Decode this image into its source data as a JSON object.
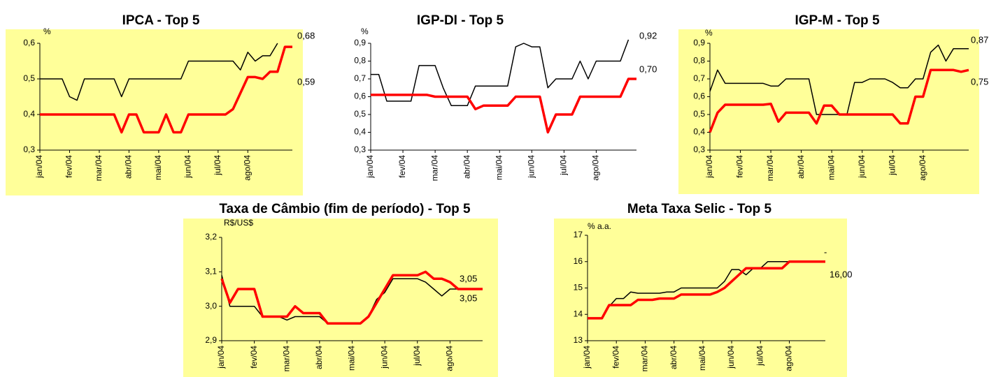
{
  "chart_data": [
    {
      "type": "line",
      "title": "IPCA - Top 5",
      "y_label": "%",
      "background": "#ffff99",
      "categories": [
        "jan/04",
        null,
        null,
        null,
        "fev/04",
        null,
        null,
        null,
        "mar/04",
        null,
        null,
        null,
        "abr/04",
        null,
        null,
        null,
        "mai/04",
        null,
        null,
        null,
        "jun/04",
        null,
        null,
        null,
        "jul/04",
        null,
        null,
        null,
        "ago/04",
        null,
        null,
        null,
        null,
        null,
        null
      ],
      "series": [
        {
          "color": "#000000",
          "values": [
            0.5,
            0.5,
            0.5,
            0.5,
            0.45,
            0.44,
            0.5,
            0.5,
            0.5,
            0.5,
            0.5,
            0.45,
            0.5,
            0.5,
            0.5,
            0.5,
            0.5,
            0.5,
            0.5,
            0.5,
            0.55,
            0.55,
            0.55,
            0.55,
            0.55,
            0.55,
            0.55,
            0.525,
            0.575,
            0.55,
            0.565,
            0.565,
            0.6,
            null,
            null
          ]
        },
        {
          "color": "#ff0000",
          "values": [
            0.4,
            0.4,
            0.4,
            0.4,
            0.4,
            0.4,
            0.4,
            0.4,
            0.4,
            0.4,
            0.4,
            0.35,
            0.4,
            0.4,
            0.35,
            0.35,
            0.35,
            0.4,
            0.35,
            0.35,
            0.4,
            0.4,
            0.4,
            0.4,
            0.4,
            0.4,
            0.415,
            0.46,
            0.505,
            0.505,
            0.5,
            0.52,
            0.52,
            0.59,
            0.59
          ]
        }
      ],
      "ylim": [
        0.3,
        0.6
      ],
      "yticks": [
        {
          "value": 0.3,
          "label": "0,3"
        },
        {
          "value": 0.4,
          "label": "0,4"
        },
        {
          "value": 0.5,
          "label": "0,5"
        },
        {
          "value": 0.6,
          "label": "0,6"
        }
      ],
      "annotations": [
        "0,68",
        "0,59"
      ]
    },
    {
      "type": "line",
      "title": "IGP-DI - Top 5",
      "y_label": "%",
      "categories": [
        "jan/04",
        null,
        null,
        null,
        "fev/04",
        null,
        null,
        null,
        "mar/04",
        null,
        null,
        null,
        "abr/04",
        null,
        null,
        null,
        "mai/04",
        null,
        null,
        null,
        "jun/04",
        null,
        null,
        null,
        "jul/04",
        null,
        null,
        null,
        "ago/04",
        null,
        null,
        null,
        null,
        null
      ],
      "series": [
        {
          "color": "#000000",
          "values": [
            0.725,
            0.725,
            0.575,
            0.575,
            0.575,
            0.575,
            0.775,
            0.775,
            0.775,
            0.65,
            0.55,
            0.55,
            0.55,
            0.66,
            0.66,
            0.66,
            0.66,
            0.66,
            0.88,
            0.9,
            0.88,
            0.88,
            0.65,
            0.7,
            0.7,
            0.7,
            0.8,
            0.7,
            0.8,
            0.8,
            0.8,
            0.8,
            0.92,
            null
          ]
        },
        {
          "color": "#ff0000",
          "values": [
            0.61,
            0.61,
            0.61,
            0.61,
            0.61,
            0.61,
            0.61,
            0.61,
            0.6,
            0.6,
            0.6,
            0.6,
            0.6,
            0.53,
            0.55,
            0.55,
            0.55,
            0.55,
            0.6,
            0.6,
            0.6,
            0.6,
            0.4,
            0.5,
            0.5,
            0.5,
            0.6,
            0.6,
            0.6,
            0.6,
            0.6,
            0.6,
            0.7,
            0.7
          ]
        }
      ],
      "ylim": [
        0.3,
        0.9
      ],
      "yticks": [
        {
          "value": 0.3,
          "label": "0,3"
        },
        {
          "value": 0.4,
          "label": "0,4"
        },
        {
          "value": 0.5,
          "label": "0,5"
        },
        {
          "value": 0.6,
          "label": "0,6"
        },
        {
          "value": 0.7,
          "label": "0,7"
        },
        {
          "value": 0.8,
          "label": "0,8"
        },
        {
          "value": 0.9,
          "label": "0,9"
        }
      ],
      "annotations": [
        "0,92",
        "0,70"
      ]
    },
    {
      "type": "line",
      "title": "IGP-M - Top 5",
      "y_label": "%",
      "background": "#ffff99",
      "categories": [
        "jan/04",
        null,
        null,
        null,
        "fev/04",
        null,
        null,
        null,
        "mar/04",
        null,
        null,
        null,
        "abr/04",
        null,
        null,
        null,
        "mai/04",
        null,
        null,
        null,
        "jun/04",
        null,
        null,
        null,
        "jul/04",
        null,
        null,
        null,
        "ago/04",
        null,
        null,
        null,
        null,
        null,
        null
      ],
      "series": [
        {
          "color": "#000000",
          "values": [
            0.63,
            0.75,
            0.675,
            0.675,
            0.675,
            0.675,
            0.675,
            0.675,
            0.66,
            0.66,
            0.7,
            0.7,
            0.7,
            0.7,
            0.5,
            0.5,
            0.5,
            0.5,
            0.5,
            0.68,
            0.68,
            0.7,
            0.7,
            0.7,
            0.68,
            0.65,
            0.65,
            0.7,
            0.7,
            0.85,
            0.89,
            0.8,
            0.87,
            0.87,
            0.87
          ]
        },
        {
          "color": "#ff0000",
          "values": [
            0.4,
            0.51,
            0.555,
            0.555,
            0.555,
            0.555,
            0.555,
            0.555,
            0.56,
            0.46,
            0.51,
            0.51,
            0.51,
            0.51,
            0.45,
            0.55,
            0.55,
            0.5,
            0.5,
            0.5,
            0.5,
            0.5,
            0.5,
            0.5,
            0.5,
            0.45,
            0.45,
            0.6,
            0.6,
            0.75,
            0.75,
            0.75,
            0.75,
            0.74,
            0.75
          ]
        }
      ],
      "ylim": [
        0.3,
        0.9
      ],
      "yticks": [
        {
          "value": 0.3,
          "label": "0,3"
        },
        {
          "value": 0.4,
          "label": "0,4"
        },
        {
          "value": 0.5,
          "label": "0,5"
        },
        {
          "value": 0.6,
          "label": "0,6"
        },
        {
          "value": 0.7,
          "label": "0,7"
        },
        {
          "value": 0.8,
          "label": "0,8"
        },
        {
          "value": 0.9,
          "label": "0,9"
        }
      ],
      "annotations": [
        "0,87",
        "0,75"
      ]
    },
    {
      "type": "line",
      "title": "Taxa de Câmbio (fim de período) - Top 5",
      "y_label": "R$/US$",
      "background": "#ffff99",
      "categories": [
        "jan/04",
        null,
        null,
        null,
        "fev/04",
        null,
        null,
        null,
        "mar/04",
        null,
        null,
        null,
        "abr/04",
        null,
        null,
        null,
        "mai/04",
        null,
        null,
        null,
        "jun/04",
        null,
        null,
        null,
        "jul/04",
        null,
        null,
        null,
        "ago/04",
        null,
        null,
        null,
        null
      ],
      "series": [
        {
          "color": "#000000",
          "values": [
            3.09,
            3.0,
            3.0,
            3.0,
            3.0,
            2.97,
            2.97,
            2.97,
            2.96,
            2.97,
            2.97,
            2.97,
            2.97,
            2.95,
            2.95,
            2.95,
            2.95,
            2.95,
            2.97,
            3.02,
            3.04,
            3.08,
            3.08,
            3.08,
            3.08,
            3.07,
            3.05,
            3.03,
            3.05,
            3.05,
            3.05,
            3.05,
            3.05
          ]
        },
        {
          "color": "#ff0000",
          "values": [
            3.08,
            3.01,
            3.05,
            3.05,
            3.05,
            2.97,
            2.97,
            2.97,
            2.97,
            3.0,
            2.98,
            2.98,
            2.98,
            2.95,
            2.95,
            2.95,
            2.95,
            2.95,
            2.97,
            3.01,
            3.05,
            3.09,
            3.09,
            3.09,
            3.09,
            3.1,
            3.08,
            3.08,
            3.07,
            3.05,
            3.05,
            3.05,
            3.05
          ]
        }
      ],
      "ylim": [
        2.9,
        3.2
      ],
      "yticks": [
        {
          "value": 2.9,
          "label": "2,9"
        },
        {
          "value": 3.0,
          "label": "3,0"
        },
        {
          "value": 3.1,
          "label": "3,1"
        },
        {
          "value": 3.2,
          "label": "3,2"
        }
      ],
      "annotations": [
        "3,05",
        "3,05"
      ]
    },
    {
      "type": "line",
      "title": "Meta Taxa Selic - Top 5",
      "y_label": "% a.a.",
      "background": "#ffff99",
      "categories": [
        "jan/04",
        null,
        null,
        null,
        "fev/04",
        null,
        null,
        null,
        "mar/04",
        null,
        null,
        null,
        "abr/04",
        null,
        null,
        null,
        "mai/04",
        null,
        null,
        null,
        "jun/04",
        null,
        null,
        null,
        "jul/04",
        null,
        null,
        null,
        "ago/04",
        null,
        null,
        null,
        null,
        null
      ],
      "series": [
        {
          "color": "#000000",
          "values": [
            13.85,
            13.85,
            13.85,
            14.3,
            14.6,
            14.6,
            14.85,
            14.8,
            14.8,
            14.8,
            14.8,
            14.85,
            14.85,
            15.0,
            15.0,
            15.0,
            15.0,
            15.0,
            15.0,
            15.25,
            15.7,
            15.7,
            15.5,
            15.75,
            15.75,
            16.0,
            16.0,
            16.0,
            16.0,
            16.0,
            16.0,
            16.0,
            16.0,
            16.0
          ]
        },
        {
          "color": "#ff0000",
          "values": [
            13.85,
            13.85,
            13.85,
            14.35,
            14.35,
            14.35,
            14.35,
            14.55,
            14.55,
            14.55,
            14.6,
            14.6,
            14.6,
            14.75,
            14.75,
            14.75,
            14.75,
            14.75,
            14.85,
            15.0,
            15.25,
            15.5,
            15.75,
            15.75,
            15.75,
            15.75,
            15.75,
            15.75,
            16.0,
            16.0,
            16.0,
            16.0,
            16.0,
            16.0
          ]
        }
      ],
      "ylim": [
        13,
        17
      ],
      "yticks": [
        13,
        14,
        15,
        16,
        17
      ],
      "annotations": [
        "-",
        "16,00"
      ]
    }
  ]
}
